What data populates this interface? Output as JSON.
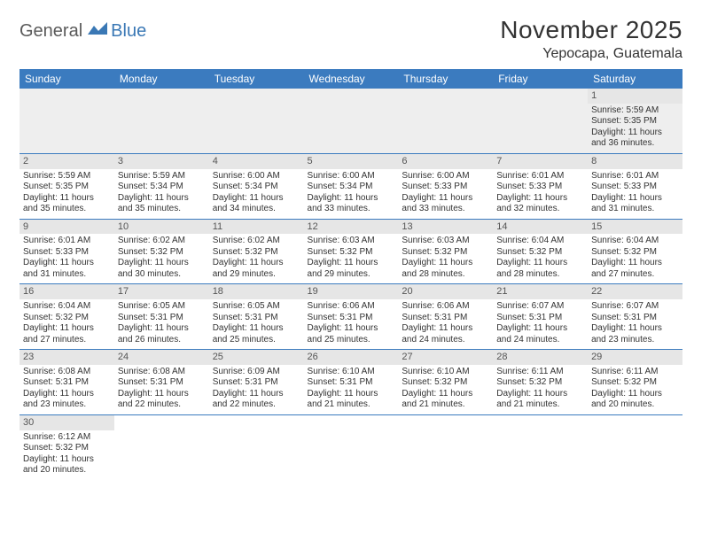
{
  "logo": {
    "part1": "General",
    "part2": "Blue"
  },
  "title": "November 2025",
  "location": "Yepocapa, Guatemala",
  "colors": {
    "header_bg": "#3b7bbf",
    "header_text": "#ffffff",
    "daynum_bg": "#e6e6e6",
    "border": "#3b7bbf",
    "logo_gray": "#5a5a5a",
    "logo_blue": "#3a78b5"
  },
  "typography": {
    "title_size_pt": 21,
    "location_size_pt": 12,
    "header_size_pt": 9,
    "cell_size_pt": 7.5
  },
  "weekdays": [
    "Sunday",
    "Monday",
    "Tuesday",
    "Wednesday",
    "Thursday",
    "Friday",
    "Saturday"
  ],
  "weeks": [
    [
      null,
      null,
      null,
      null,
      null,
      null,
      {
        "n": "1",
        "sr": "Sunrise: 5:59 AM",
        "ss": "Sunset: 5:35 PM",
        "d1": "Daylight: 11 hours",
        "d2": "and 36 minutes."
      }
    ],
    [
      {
        "n": "2",
        "sr": "Sunrise: 5:59 AM",
        "ss": "Sunset: 5:35 PM",
        "d1": "Daylight: 11 hours",
        "d2": "and 35 minutes."
      },
      {
        "n": "3",
        "sr": "Sunrise: 5:59 AM",
        "ss": "Sunset: 5:34 PM",
        "d1": "Daylight: 11 hours",
        "d2": "and 35 minutes."
      },
      {
        "n": "4",
        "sr": "Sunrise: 6:00 AM",
        "ss": "Sunset: 5:34 PM",
        "d1": "Daylight: 11 hours",
        "d2": "and 34 minutes."
      },
      {
        "n": "5",
        "sr": "Sunrise: 6:00 AM",
        "ss": "Sunset: 5:34 PM",
        "d1": "Daylight: 11 hours",
        "d2": "and 33 minutes."
      },
      {
        "n": "6",
        "sr": "Sunrise: 6:00 AM",
        "ss": "Sunset: 5:33 PM",
        "d1": "Daylight: 11 hours",
        "d2": "and 33 minutes."
      },
      {
        "n": "7",
        "sr": "Sunrise: 6:01 AM",
        "ss": "Sunset: 5:33 PM",
        "d1": "Daylight: 11 hours",
        "d2": "and 32 minutes."
      },
      {
        "n": "8",
        "sr": "Sunrise: 6:01 AM",
        "ss": "Sunset: 5:33 PM",
        "d1": "Daylight: 11 hours",
        "d2": "and 31 minutes."
      }
    ],
    [
      {
        "n": "9",
        "sr": "Sunrise: 6:01 AM",
        "ss": "Sunset: 5:33 PM",
        "d1": "Daylight: 11 hours",
        "d2": "and 31 minutes."
      },
      {
        "n": "10",
        "sr": "Sunrise: 6:02 AM",
        "ss": "Sunset: 5:32 PM",
        "d1": "Daylight: 11 hours",
        "d2": "and 30 minutes."
      },
      {
        "n": "11",
        "sr": "Sunrise: 6:02 AM",
        "ss": "Sunset: 5:32 PM",
        "d1": "Daylight: 11 hours",
        "d2": "and 29 minutes."
      },
      {
        "n": "12",
        "sr": "Sunrise: 6:03 AM",
        "ss": "Sunset: 5:32 PM",
        "d1": "Daylight: 11 hours",
        "d2": "and 29 minutes."
      },
      {
        "n": "13",
        "sr": "Sunrise: 6:03 AM",
        "ss": "Sunset: 5:32 PM",
        "d1": "Daylight: 11 hours",
        "d2": "and 28 minutes."
      },
      {
        "n": "14",
        "sr": "Sunrise: 6:04 AM",
        "ss": "Sunset: 5:32 PM",
        "d1": "Daylight: 11 hours",
        "d2": "and 28 minutes."
      },
      {
        "n": "15",
        "sr": "Sunrise: 6:04 AM",
        "ss": "Sunset: 5:32 PM",
        "d1": "Daylight: 11 hours",
        "d2": "and 27 minutes."
      }
    ],
    [
      {
        "n": "16",
        "sr": "Sunrise: 6:04 AM",
        "ss": "Sunset: 5:32 PM",
        "d1": "Daylight: 11 hours",
        "d2": "and 27 minutes."
      },
      {
        "n": "17",
        "sr": "Sunrise: 6:05 AM",
        "ss": "Sunset: 5:31 PM",
        "d1": "Daylight: 11 hours",
        "d2": "and 26 minutes."
      },
      {
        "n": "18",
        "sr": "Sunrise: 6:05 AM",
        "ss": "Sunset: 5:31 PM",
        "d1": "Daylight: 11 hours",
        "d2": "and 25 minutes."
      },
      {
        "n": "19",
        "sr": "Sunrise: 6:06 AM",
        "ss": "Sunset: 5:31 PM",
        "d1": "Daylight: 11 hours",
        "d2": "and 25 minutes."
      },
      {
        "n": "20",
        "sr": "Sunrise: 6:06 AM",
        "ss": "Sunset: 5:31 PM",
        "d1": "Daylight: 11 hours",
        "d2": "and 24 minutes."
      },
      {
        "n": "21",
        "sr": "Sunrise: 6:07 AM",
        "ss": "Sunset: 5:31 PM",
        "d1": "Daylight: 11 hours",
        "d2": "and 24 minutes."
      },
      {
        "n": "22",
        "sr": "Sunrise: 6:07 AM",
        "ss": "Sunset: 5:31 PM",
        "d1": "Daylight: 11 hours",
        "d2": "and 23 minutes."
      }
    ],
    [
      {
        "n": "23",
        "sr": "Sunrise: 6:08 AM",
        "ss": "Sunset: 5:31 PM",
        "d1": "Daylight: 11 hours",
        "d2": "and 23 minutes."
      },
      {
        "n": "24",
        "sr": "Sunrise: 6:08 AM",
        "ss": "Sunset: 5:31 PM",
        "d1": "Daylight: 11 hours",
        "d2": "and 22 minutes."
      },
      {
        "n": "25",
        "sr": "Sunrise: 6:09 AM",
        "ss": "Sunset: 5:31 PM",
        "d1": "Daylight: 11 hours",
        "d2": "and 22 minutes."
      },
      {
        "n": "26",
        "sr": "Sunrise: 6:10 AM",
        "ss": "Sunset: 5:31 PM",
        "d1": "Daylight: 11 hours",
        "d2": "and 21 minutes."
      },
      {
        "n": "27",
        "sr": "Sunrise: 6:10 AM",
        "ss": "Sunset: 5:32 PM",
        "d1": "Daylight: 11 hours",
        "d2": "and 21 minutes."
      },
      {
        "n": "28",
        "sr": "Sunrise: 6:11 AM",
        "ss": "Sunset: 5:32 PM",
        "d1": "Daylight: 11 hours",
        "d2": "and 21 minutes."
      },
      {
        "n": "29",
        "sr": "Sunrise: 6:11 AM",
        "ss": "Sunset: 5:32 PM",
        "d1": "Daylight: 11 hours",
        "d2": "and 20 minutes."
      }
    ],
    [
      {
        "n": "30",
        "sr": "Sunrise: 6:12 AM",
        "ss": "Sunset: 5:32 PM",
        "d1": "Daylight: 11 hours",
        "d2": "and 20 minutes."
      },
      null,
      null,
      null,
      null,
      null,
      null
    ]
  ]
}
